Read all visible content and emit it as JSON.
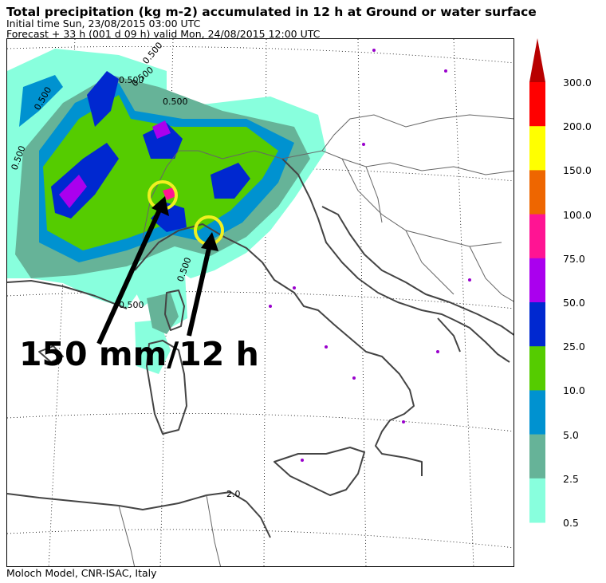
{
  "header": {
    "title": "Total precipitation (kg m-2) accumulated in  12 h at Ground or water surface",
    "initial_time": "Initial time  Sun, 23/08/2015  03:00 UTC",
    "forecast": "Forecast  +  33 h  (001 d 09 h)  valid Mon, 24/08/2015 12:00 UTC"
  },
  "footer": "Moloch Model, CNR-ISAC, Italy",
  "annotation": "150 mm/12 h",
  "contour_labels": [
    "0.500",
    "0.500",
    "0.500",
    "0.500",
    "0.500",
    "0.500",
    "0.500",
    "0.500",
    "2.0"
  ],
  "legend": {
    "levels": [
      "300.0",
      "200.0",
      "150.0",
      "100.0",
      "75.0",
      "50.0",
      "25.0",
      "10.0",
      "5.0",
      "2.5",
      "0.5"
    ],
    "colors": [
      "#ff0000",
      "#ffff00",
      "#ee6600",
      "#ff1493",
      "#aa00ee",
      "#0028d0",
      "#55cc00",
      "#0092d0",
      "#66b398",
      "#88ffdd"
    ],
    "overflow_color": "#b80000"
  },
  "highlights": {
    "circle_color": "#f0f020",
    "arrow_color": "#000000"
  }
}
